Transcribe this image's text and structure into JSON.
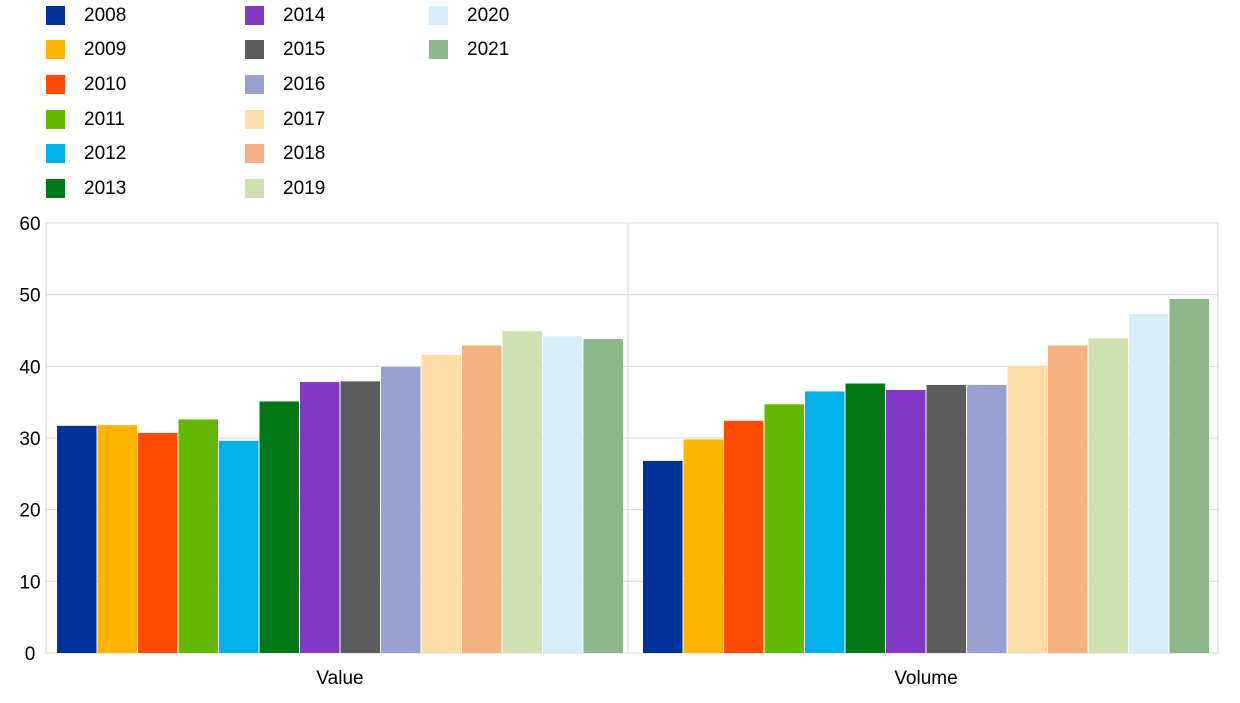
{
  "chart_data": {
    "type": "bar",
    "categories": [
      "Value",
      "Volume"
    ],
    "series": [
      {
        "name": "2008",
        "color": "#003299",
        "values": [
          31.7,
          26.8
        ]
      },
      {
        "name": "2009",
        "color": "#FFB400",
        "values": [
          31.8,
          29.8
        ]
      },
      {
        "name": "2010",
        "color": "#FF4B00",
        "values": [
          30.7,
          32.4
        ]
      },
      {
        "name": "2011",
        "color": "#65B800",
        "values": [
          32.6,
          34.7
        ]
      },
      {
        "name": "2012",
        "color": "#00B1EA",
        "values": [
          29.6,
          36.5
        ]
      },
      {
        "name": "2013",
        "color": "#007816",
        "values": [
          35.1,
          37.6
        ]
      },
      {
        "name": "2014",
        "color": "#8139C6",
        "values": [
          37.8,
          36.7
        ]
      },
      {
        "name": "2015",
        "color": "#5C5C5C",
        "values": [
          37.9,
          37.4
        ]
      },
      {
        "name": "2016",
        "color": "#98A1D0",
        "values": [
          39.9,
          37.4
        ]
      },
      {
        "name": "2017",
        "color": "#FDDDA7",
        "values": [
          41.6,
          40.0
        ]
      },
      {
        "name": "2018",
        "color": "#F6B183",
        "values": [
          42.9,
          42.9
        ]
      },
      {
        "name": "2019",
        "color": "#CEE1B0",
        "values": [
          44.9,
          43.9
        ]
      },
      {
        "name": "2020",
        "color": "#D7EEF8",
        "values": [
          44.2,
          47.3
        ]
      },
      {
        "name": "2021",
        "color": "#8DB68A",
        "values": [
          43.8,
          49.4
        ]
      }
    ],
    "y_ticks": [
      "0",
      "10",
      "20",
      "30",
      "40",
      "50",
      "60"
    ],
    "ylim": [
      0,
      60
    ],
    "grid": true,
    "legend_position": "top-left",
    "title": "",
    "xlabel": "",
    "ylabel": ""
  }
}
